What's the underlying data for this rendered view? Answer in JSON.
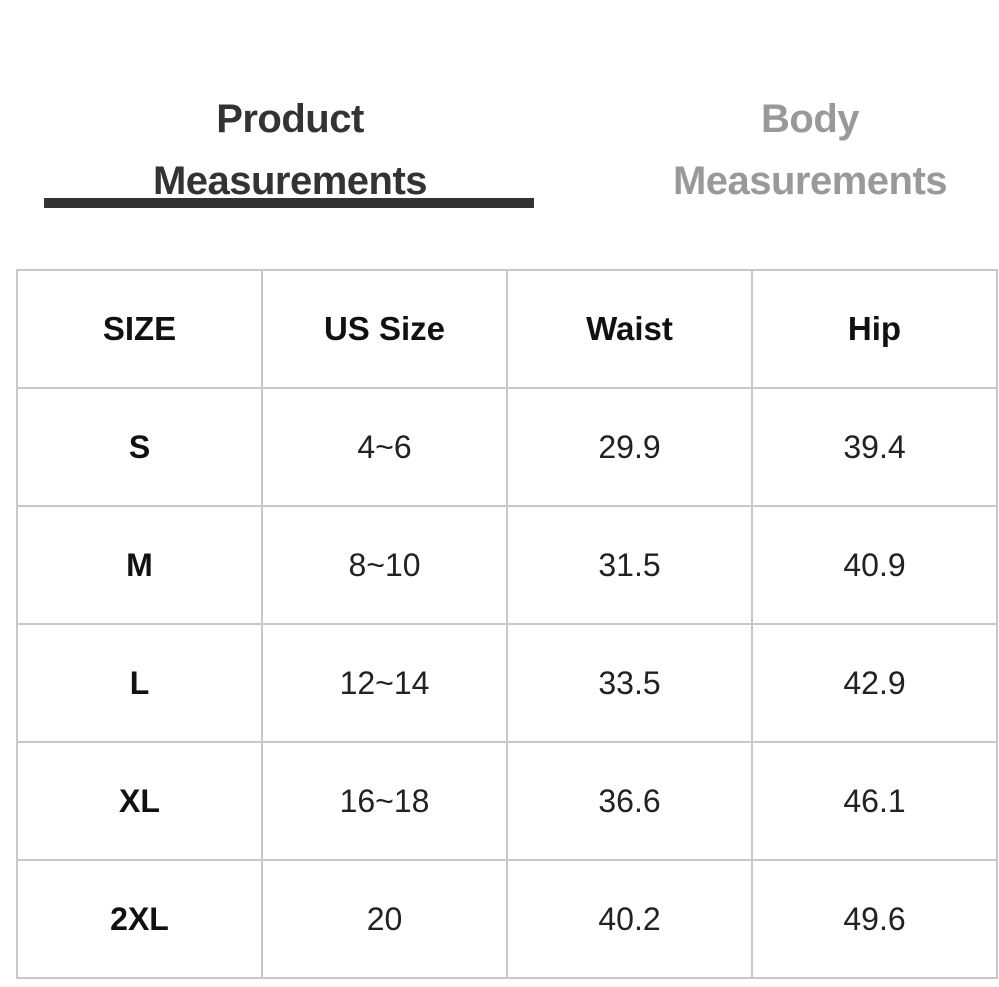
{
  "tabs": [
    {
      "label_line1": "Product",
      "label_line2": "Measurements",
      "active": true
    },
    {
      "label_line1": "Body",
      "label_line2": "Measurements",
      "active": false
    }
  ],
  "colors": {
    "active_tab": "#333333",
    "inactive_tab": "#999999",
    "grid": "#c8c8c8"
  },
  "table": {
    "headers": [
      "SIZE",
      "US Size",
      "Waist",
      "Hip"
    ],
    "rows": [
      [
        "S",
        "4~6",
        "29.9",
        "39.4"
      ],
      [
        "M",
        "8~10",
        "31.5",
        "40.9"
      ],
      [
        "L",
        "12~14",
        "33.5",
        "42.9"
      ],
      [
        "XL",
        "16~18",
        "36.6",
        "46.1"
      ],
      [
        "2XL",
        "20",
        "40.2",
        "49.6"
      ]
    ]
  }
}
